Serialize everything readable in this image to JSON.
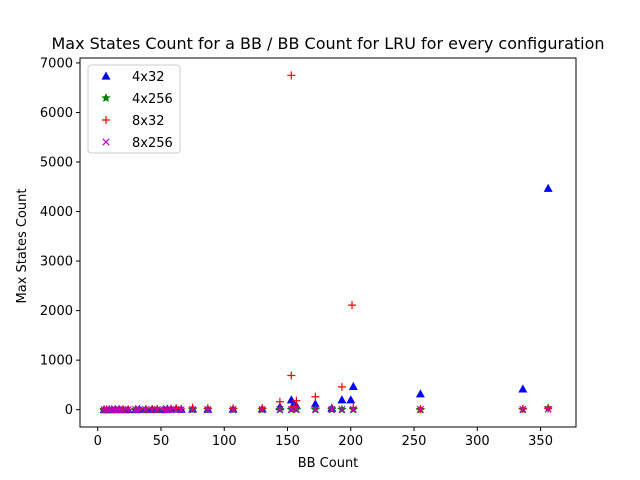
{
  "chart_data": {
    "type": "scatter",
    "title": "Max States Count for a BB / BB Count for LRU for every configuration",
    "xlabel": "BB Count",
    "ylabel": "Max States Count",
    "xlim": [
      -14,
      378
    ],
    "ylim": [
      -350,
      7100
    ],
    "xticks": [
      0,
      50,
      100,
      150,
      200,
      250,
      300,
      350
    ],
    "yticks": [
      0,
      1000,
      2000,
      3000,
      4000,
      5000,
      6000,
      7000
    ],
    "grid": false,
    "legend_position": "top-left",
    "series": [
      {
        "name": "4x32",
        "marker": "triangle",
        "color": "#0000ff",
        "points": [
          [
            5,
            2
          ],
          [
            7,
            3
          ],
          [
            9,
            2
          ],
          [
            11,
            4
          ],
          [
            14,
            3
          ],
          [
            17,
            5
          ],
          [
            20,
            3
          ],
          [
            24,
            2
          ],
          [
            30,
            4
          ],
          [
            33,
            6
          ],
          [
            38,
            5
          ],
          [
            43,
            8
          ],
          [
            47,
            6
          ],
          [
            52,
            4
          ],
          [
            55,
            10
          ],
          [
            58,
            12
          ],
          [
            62,
            15
          ],
          [
            66,
            8
          ],
          [
            75,
            15
          ],
          [
            87,
            10
          ],
          [
            107,
            12
          ],
          [
            130,
            15
          ],
          [
            144,
            60
          ],
          [
            153,
            200
          ],
          [
            155,
            120
          ],
          [
            157,
            80
          ],
          [
            172,
            120
          ],
          [
            185,
            30
          ],
          [
            193,
            200
          ],
          [
            200,
            200
          ],
          [
            202,
            470
          ],
          [
            255,
            320
          ],
          [
            336,
            420
          ],
          [
            356,
            4470
          ]
        ]
      },
      {
        "name": "4x256",
        "marker": "star",
        "color": "#008000",
        "points": [
          [
            5,
            1
          ],
          [
            9,
            1
          ],
          [
            14,
            1
          ],
          [
            20,
            1
          ],
          [
            30,
            1
          ],
          [
            38,
            1
          ],
          [
            47,
            1
          ],
          [
            55,
            2
          ],
          [
            62,
            2
          ],
          [
            75,
            2
          ],
          [
            87,
            2
          ],
          [
            107,
            2
          ],
          [
            130,
            2
          ],
          [
            144,
            3
          ],
          [
            153,
            3
          ],
          [
            157,
            3
          ],
          [
            172,
            3
          ],
          [
            185,
            3
          ],
          [
            193,
            3
          ],
          [
            202,
            3
          ],
          [
            255,
            3
          ],
          [
            336,
            4
          ],
          [
            356,
            30
          ]
        ]
      },
      {
        "name": "8x32",
        "marker": "plus",
        "color": "#ff0000",
        "points": [
          [
            5,
            3
          ],
          [
            7,
            4
          ],
          [
            9,
            3
          ],
          [
            11,
            5
          ],
          [
            14,
            4
          ],
          [
            17,
            6
          ],
          [
            20,
            4
          ],
          [
            24,
            3
          ],
          [
            30,
            5
          ],
          [
            33,
            8
          ],
          [
            38,
            6
          ],
          [
            43,
            10
          ],
          [
            47,
            8
          ],
          [
            52,
            6
          ],
          [
            55,
            15
          ],
          [
            58,
            20
          ],
          [
            62,
            30
          ],
          [
            66,
            15
          ],
          [
            75,
            40
          ],
          [
            87,
            30
          ],
          [
            107,
            25
          ],
          [
            130,
            30
          ],
          [
            144,
            160
          ],
          [
            153,
            6750
          ],
          [
            153,
            690
          ],
          [
            155,
            60
          ],
          [
            157,
            180
          ],
          [
            172,
            260
          ],
          [
            185,
            40
          ],
          [
            193,
            460
          ],
          [
            201,
            2110
          ],
          [
            202,
            40
          ],
          [
            255,
            10
          ],
          [
            336,
            15
          ],
          [
            356,
            20
          ]
        ]
      },
      {
        "name": "8x256",
        "marker": "x",
        "color": "#bf00bf",
        "points": [
          [
            5,
            1
          ],
          [
            7,
            1
          ],
          [
            9,
            1
          ],
          [
            11,
            1
          ],
          [
            14,
            1
          ],
          [
            17,
            1
          ],
          [
            20,
            1
          ],
          [
            24,
            1
          ],
          [
            30,
            1
          ],
          [
            33,
            1
          ],
          [
            38,
            1
          ],
          [
            43,
            2
          ],
          [
            47,
            2
          ],
          [
            52,
            2
          ],
          [
            55,
            2
          ],
          [
            58,
            2
          ],
          [
            62,
            2
          ],
          [
            66,
            2
          ],
          [
            75,
            3
          ],
          [
            87,
            3
          ],
          [
            107,
            3
          ],
          [
            130,
            3
          ],
          [
            144,
            4
          ],
          [
            153,
            4
          ],
          [
            157,
            4
          ],
          [
            172,
            4
          ],
          [
            185,
            5
          ],
          [
            193,
            5
          ],
          [
            202,
            5
          ],
          [
            255,
            5
          ],
          [
            336,
            6
          ],
          [
            356,
            8
          ]
        ]
      }
    ]
  }
}
